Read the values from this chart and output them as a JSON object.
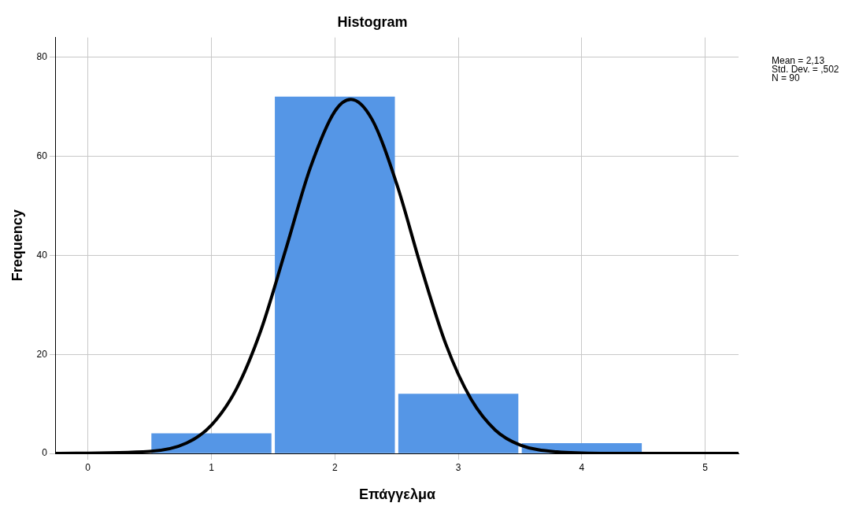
{
  "chart_data": {
    "type": "histogram",
    "title": "Histogram",
    "xlabel": "Επάγγελμα",
    "ylabel": "Frequency",
    "bins": [
      0.5,
      1.5,
      2.5,
      3.5,
      4.5
    ],
    "values": [
      4,
      72,
      12,
      2
    ],
    "color": "#5596e6",
    "series": [
      {
        "type": "line",
        "color": "#000000",
        "x": [
          -0.26,
          0.5,
          0.8,
          1.0,
          1.2,
          1.4,
          1.6,
          1.8,
          2.0,
          2.13,
          2.3,
          2.5,
          2.7,
          2.9,
          3.1,
          3.3,
          3.5,
          3.8,
          4.2,
          5.27
        ],
        "values": [
          0,
          0.4,
          2.1,
          5.7,
          12.9,
          24.8,
          41,
          57.6,
          69.1,
          71.5,
          67.5,
          54.5,
          37.5,
          22,
          11.1,
          4.7,
          1.7,
          0.3,
          0,
          0
        ]
      }
    ],
    "xlim": [
      -0.26,
      5.27
    ],
    "xticks": [
      0,
      1,
      2,
      3,
      4,
      5
    ],
    "ylim": [
      0,
      84
    ],
    "yticks": [
      0,
      20,
      40,
      60,
      80
    ],
    "grid": true,
    "legend": false,
    "marker": "none",
    "annotations": [
      "Mean = 2,13",
      "Std. Dev. = ,502",
      "N = 90"
    ]
  }
}
